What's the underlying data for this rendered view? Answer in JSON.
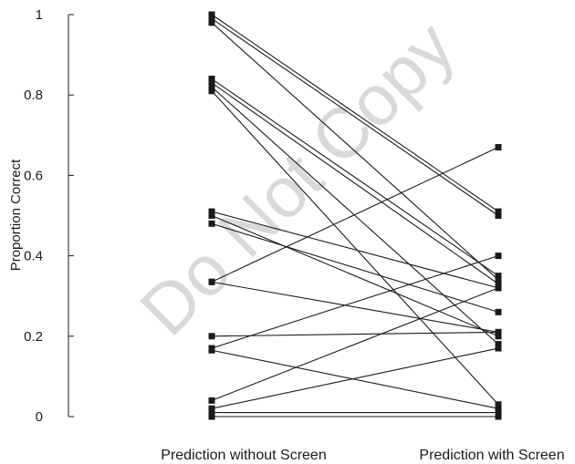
{
  "watermark": "Do Not Copy",
  "chart_data": {
    "type": "line",
    "title": "",
    "xlabel": "",
    "ylabel": "Proportion Correct",
    "categories": [
      "Prediction without Screen",
      "Prediction with Screen"
    ],
    "yticks": [
      "0",
      "0.2",
      "0.4",
      "0.6",
      "0.8",
      "1"
    ],
    "ylim": [
      0,
      1
    ],
    "grid": false,
    "legend": "none",
    "series_color": "#1a1a1a",
    "series": [
      {
        "values": [
          1.0,
          0.51
        ]
      },
      {
        "values": [
          0.99,
          0.5
        ]
      },
      {
        "values": [
          0.98,
          0.34
        ]
      },
      {
        "values": [
          0.84,
          0.35
        ]
      },
      {
        "values": [
          0.83,
          0.33
        ]
      },
      {
        "values": [
          0.82,
          0.18
        ]
      },
      {
        "values": [
          0.81,
          0.03
        ]
      },
      {
        "values": [
          0.51,
          0.32
        ]
      },
      {
        "values": [
          0.5,
          0.2
        ]
      },
      {
        "values": [
          0.48,
          0.26
        ]
      },
      {
        "values": [
          0.335,
          0.21
        ]
      },
      {
        "values": [
          0.335,
          0.67
        ]
      },
      {
        "values": [
          0.2,
          0.21
        ]
      },
      {
        "values": [
          0.17,
          0.4
        ]
      },
      {
        "values": [
          0.165,
          0.02
        ]
      },
      {
        "values": [
          0.04,
          0.32
        ]
      },
      {
        "values": [
          0.02,
          0.17
        ]
      },
      {
        "values": [
          0.01,
          0.01
        ]
      },
      {
        "values": [
          0.0,
          0.0
        ]
      }
    ]
  }
}
